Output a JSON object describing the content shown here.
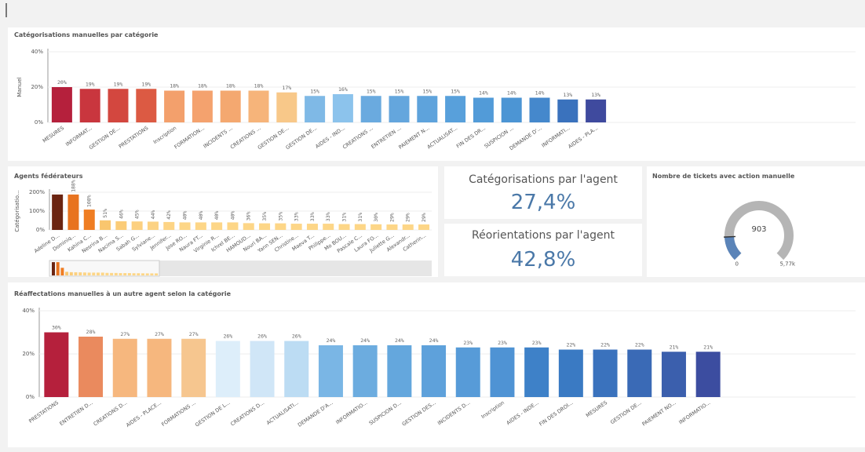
{
  "chart_data": [
    {
      "type": "bar",
      "title": "Catégorisations manuelles par catégorie",
      "y_label": "Manuel",
      "categories": [
        "MESURES",
        "INFORMAT...",
        "GESTION DE...",
        "PRESTATIONS",
        "Inscription",
        "FORMATION...",
        "INCIDENTS ...",
        "CREATIONS ...",
        "GESTION DE...",
        "GESTION DE...",
        "AIDES - IND...",
        "CREATIONS ...",
        "ENTRETIEN ...",
        "PAIEMENT N...",
        "ACTUALISAT...",
        "FIN DES DR...",
        "SUSPICION ...",
        "DEMANDE D'...",
        "INFORMATI...",
        "AIDES - PLA..."
      ],
      "values": [
        20,
        19,
        19,
        19,
        18,
        18,
        18,
        18,
        17,
        15,
        16,
        15,
        15,
        15,
        15,
        14,
        14,
        14,
        13,
        13
      ],
      "value_labels": [
        "20%",
        "19%",
        "19%",
        "19%",
        "18%",
        "18%",
        "18%",
        "18%",
        "17%",
        "15%",
        "16%",
        "15%",
        "15%",
        "15%",
        "15%",
        "14%",
        "14%",
        "14%",
        "13%",
        "13%"
      ],
      "colors": [
        "#b5203c",
        "#c9363e",
        "#d3473f",
        "#dc5a43",
        "#f3a06c",
        "#f4a26e",
        "#f4a870",
        "#f6b47a",
        "#f8c889",
        "#7fb9e6",
        "#8cc3ec",
        "#6aaadf",
        "#64a6dd",
        "#5ea3dc",
        "#58a0db",
        "#529bd8",
        "#4c95d4",
        "#4588cc",
        "#3a72bd",
        "#3f4a9e"
      ],
      "ylim": [
        0,
        40
      ],
      "yticks": [
        {
          "value": 0,
          "label": "0%"
        },
        {
          "value": 20,
          "label": "20%"
        },
        {
          "value": 40,
          "label": "40%"
        }
      ]
    },
    {
      "type": "bar",
      "title": "Agents fédérateurs",
      "y_label": "Catégorisatio...",
      "categories": [
        "Adeline D...",
        "Dominiq...",
        "Kahina C...",
        "Nesrina B...",
        "Nacima S...",
        "Sabah G...",
        "Sylviane...",
        "Jennifer...",
        "Jose RO...",
        "Naura FT...",
        "Virginie R...",
        "Ichrel BE...",
        "HAMOUD...",
        "Nouri BA...",
        "Yann SEN...",
        "Christine...",
        "Maeva T...",
        "Philippe...",
        "Mo BOU...",
        "Pascale C...",
        "Laura FO...",
        "Juliette G...",
        "Alexandr...",
        "Catherin..."
      ],
      "values": [
        188,
        188,
        108,
        51,
        46,
        45,
        44,
        42,
        40,
        40,
        40,
        40,
        36,
        35,
        35,
        33,
        33,
        33,
        31,
        31,
        30,
        29,
        29,
        29
      ],
      "value_labels": [
        "188%",
        "188%",
        "108%",
        "51%",
        "46%",
        "45%",
        "44%",
        "42%",
        "40%",
        "40%",
        "40%",
        "40%",
        "36%",
        "35%",
        "35%",
        "33%",
        "33%",
        "33%",
        "31%",
        "31%",
        "30%",
        "29%",
        "29%",
        "29%"
      ],
      "colors": [
        "#6b2411",
        "#e8731f",
        "#ef7d22",
        "#f9c66e",
        "#fbcc78",
        "#fcd080",
        "#fcd283",
        "#fdd485",
        "#fdd687",
        "#fdd687",
        "#fdd687",
        "#fdd687",
        "#fdd687",
        "#fdd687",
        "#fdd687",
        "#fdd687",
        "#fdd687",
        "#fdd687",
        "#fdd687",
        "#fdd687",
        "#fdd687",
        "#fdd687",
        "#fdd687",
        "#fdd687"
      ],
      "ylim": [
        0,
        200
      ],
      "yticks": [
        {
          "value": 0,
          "label": "0%"
        },
        {
          "value": 100,
          "label": "100%"
        },
        {
          "value": 200,
          "label": "200%"
        }
      ]
    },
    {
      "type": "bar",
      "title": "Réaffectations manuelles à un autre agent selon la catégorie",
      "categories": [
        "PRESTATIONS",
        "ENTRETIEN D...",
        "CREATIONS D...",
        "AIDES - PLACE...",
        "FORMATIONS ...",
        "GESTION DE L...",
        "CREATIONS D...",
        "ACTUALISATI...",
        "DEMANDE D'A...",
        "INFORMATIO...",
        "SUSPICION D...",
        "GESTION DES...",
        "INCIDENTS D...",
        "Inscription",
        "AIDES - INDE...",
        "FIN DES DROI...",
        "MESURES",
        "GESTION DE...",
        "PAIEMENT NO...",
        "INFORMATIO..."
      ],
      "values": [
        30,
        28,
        27,
        27,
        27,
        26,
        26,
        26,
        24,
        24,
        24,
        24,
        23,
        23,
        23,
        22,
        22,
        22,
        21,
        21
      ],
      "value_labels": [
        "30%",
        "28%",
        "27%",
        "27%",
        "27%",
        "26%",
        "26%",
        "26%",
        "24%",
        "24%",
        "24%",
        "24%",
        "23%",
        "23%",
        "23%",
        "22%",
        "22%",
        "22%",
        "21%",
        "21%"
      ],
      "colors": [
        "#b5203c",
        "#ea8a5e",
        "#f6b77e",
        "#f6b77e",
        "#f6c68f",
        "#ddeefa",
        "#d0e6f7",
        "#bcdcf3",
        "#7ab6e5",
        "#6cacdf",
        "#64a7dd",
        "#5ea1db",
        "#579bd8",
        "#4f93d4",
        "#3e81c8",
        "#3a7ac3",
        "#3a72bd",
        "#3a6ab6",
        "#3b5fad",
        "#3c4da0"
      ],
      "ylim": [
        0,
        40
      ],
      "yticks": [
        {
          "value": 0,
          "label": "0%"
        },
        {
          "value": 20,
          "label": "20%"
        },
        {
          "value": 40,
          "label": "40%"
        }
      ]
    },
    {
      "type": "gauge",
      "title": "Nombre de tickets avec action manuelle",
      "value": 903,
      "color": "#5b84b8",
      "xlim": [
        0,
        5770
      ],
      "xticks": [
        0,
        {
          "value": 5770,
          "label": "5,77k"
        }
      ]
    }
  ],
  "kpis": [
    {
      "title": "Catégorisations par l'agent",
      "value": 27.4,
      "value_label": "27,4%"
    },
    {
      "title": "Réorientations par l'agent",
      "value": 42.8,
      "value_label": "42,8%"
    }
  ]
}
